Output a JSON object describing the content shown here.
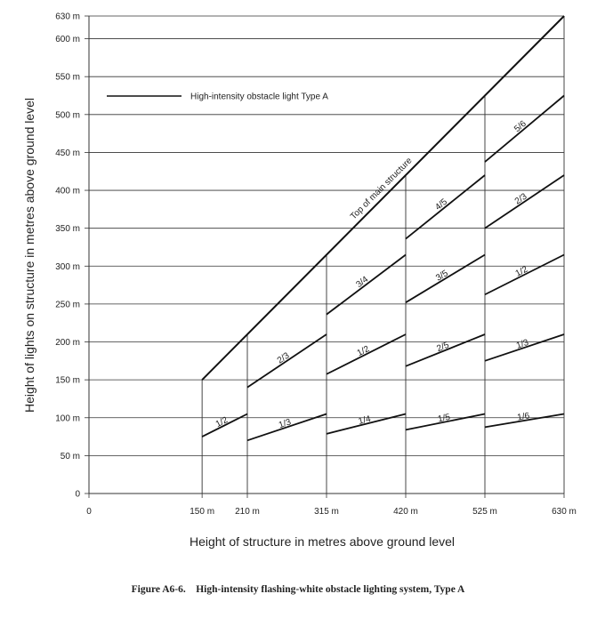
{
  "caption": "Figure A6-6.    High-intensity flashing-white obstacle lighting system, Type A",
  "chart_data": {
    "type": "line",
    "title": "",
    "xlabel": "Height of structure in metres above ground level",
    "ylabel": "Height of lights on structure in metres above ground level",
    "xlim": [
      0,
      630
    ],
    "ylim": [
      0,
      630
    ],
    "x_ticks": [
      {
        "value": 0,
        "label": "0"
      },
      {
        "value": 150,
        "label": "150 m"
      },
      {
        "value": 210,
        "label": "210 m"
      },
      {
        "value": 315,
        "label": "315 m"
      },
      {
        "value": 420,
        "label": "420 m"
      },
      {
        "value": 525,
        "label": "525 m"
      },
      {
        "value": 630,
        "label": "630 m"
      }
    ],
    "y_ticks": [
      {
        "value": 0,
        "label": "0"
      },
      {
        "value": 50,
        "label": "50 m"
      },
      {
        "value": 100,
        "label": "100 m"
      },
      {
        "value": 150,
        "label": "150 m"
      },
      {
        "value": 200,
        "label": "200 m"
      },
      {
        "value": 250,
        "label": "250 m"
      },
      {
        "value": 300,
        "label": "300 m"
      },
      {
        "value": 350,
        "label": "350 m"
      },
      {
        "value": 400,
        "label": "400 m"
      },
      {
        "value": 450,
        "label": "450 m"
      },
      {
        "value": 500,
        "label": "500 m"
      },
      {
        "value": 550,
        "label": "550 m"
      },
      {
        "value": 600,
        "label": "600 m"
      },
      {
        "value": 630,
        "label": "630 m"
      }
    ],
    "grid": "horizontal",
    "legend": {
      "position": "top-left",
      "label": "High-intensity obstacle light Type A"
    },
    "top_line": {
      "label": "Top of main structure",
      "x": [
        150,
        630
      ],
      "y": [
        150,
        630
      ]
    },
    "breakpoints": [
      150,
      210,
      315,
      420,
      525,
      630
    ],
    "segments": [
      {
        "label": "1/2",
        "x": [
          150,
          210
        ],
        "y": [
          75,
          105
        ]
      },
      {
        "label": "1/3",
        "x": [
          210,
          315
        ],
        "y": [
          70,
          105
        ]
      },
      {
        "label": "2/3",
        "x": [
          210,
          315
        ],
        "y": [
          140,
          210
        ]
      },
      {
        "label": "1/4",
        "x": [
          315,
          420
        ],
        "y": [
          78.75,
          105
        ]
      },
      {
        "label": "1/2",
        "x": [
          315,
          420
        ],
        "y": [
          157.5,
          210
        ]
      },
      {
        "label": "3/4",
        "x": [
          315,
          420
        ],
        "y": [
          236.25,
          315
        ]
      },
      {
        "label": "1/5",
        "x": [
          420,
          525
        ],
        "y": [
          84,
          105
        ]
      },
      {
        "label": "2/5",
        "x": [
          420,
          525
        ],
        "y": [
          168,
          210
        ]
      },
      {
        "label": "3/5",
        "x": [
          420,
          525
        ],
        "y": [
          252,
          315
        ]
      },
      {
        "label": "4/5",
        "x": [
          420,
          525
        ],
        "y": [
          336,
          420
        ]
      },
      {
        "label": "1/6",
        "x": [
          525,
          630
        ],
        "y": [
          87.5,
          105
        ]
      },
      {
        "label": "1/3",
        "x": [
          525,
          630
        ],
        "y": [
          175,
          210
        ]
      },
      {
        "label": "1/2",
        "x": [
          525,
          630
        ],
        "y": [
          262.5,
          315
        ]
      },
      {
        "label": "2/3",
        "x": [
          525,
          630
        ],
        "y": [
          350,
          420
        ]
      },
      {
        "label": "5/6",
        "x": [
          525,
          630
        ],
        "y": [
          437.5,
          525
        ]
      }
    ]
  }
}
